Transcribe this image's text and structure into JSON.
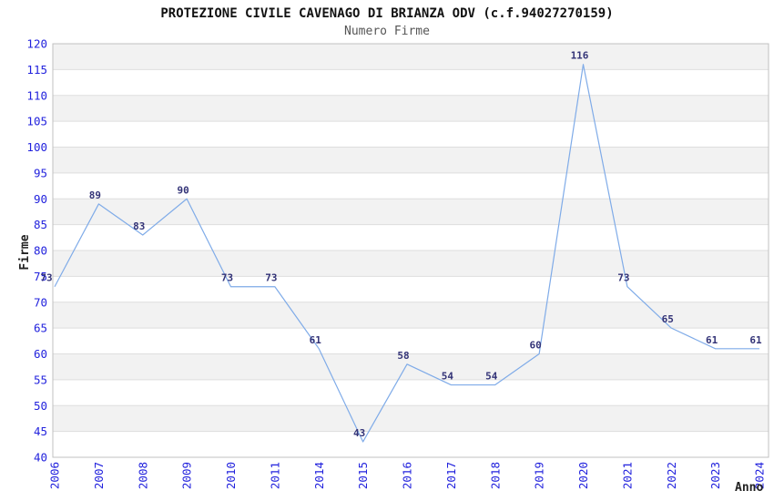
{
  "chart_data": {
    "type": "line",
    "title": "PROTEZIONE CIVILE CAVENAGO DI BRIANZA ODV (c.f.94027270159)",
    "subtitle": "Numero Firme",
    "xlabel": "Anno",
    "ylabel": "Firme",
    "categories": [
      "2006",
      "2007",
      "2008",
      "2009",
      "2010",
      "2011",
      "2014",
      "2015",
      "2016",
      "2017",
      "2018",
      "2019",
      "2020",
      "2021",
      "2022",
      "2023",
      "2024"
    ],
    "values": [
      73,
      89,
      83,
      90,
      73,
      73,
      61,
      43,
      58,
      54,
      54,
      60,
      116,
      73,
      65,
      61,
      61
    ],
    "ylim": [
      40,
      120
    ],
    "ytick_step": 5,
    "yticks": [
      40,
      45,
      50,
      55,
      60,
      65,
      70,
      75,
      80,
      85,
      90,
      95,
      100,
      105,
      110,
      115,
      120
    ],
    "grid": true,
    "legend": "none",
    "colors": {
      "line": "#7fabe8",
      "tick_label": "#2222dd",
      "value_label": "#333377",
      "grid_line": "#dedede",
      "band_fill": "#f2f2f2",
      "plot_border": "#c0c0c0",
      "title": "#111111",
      "subtitle": "#555555",
      "axis_title": "#222222",
      "background": "#ffffff"
    }
  }
}
